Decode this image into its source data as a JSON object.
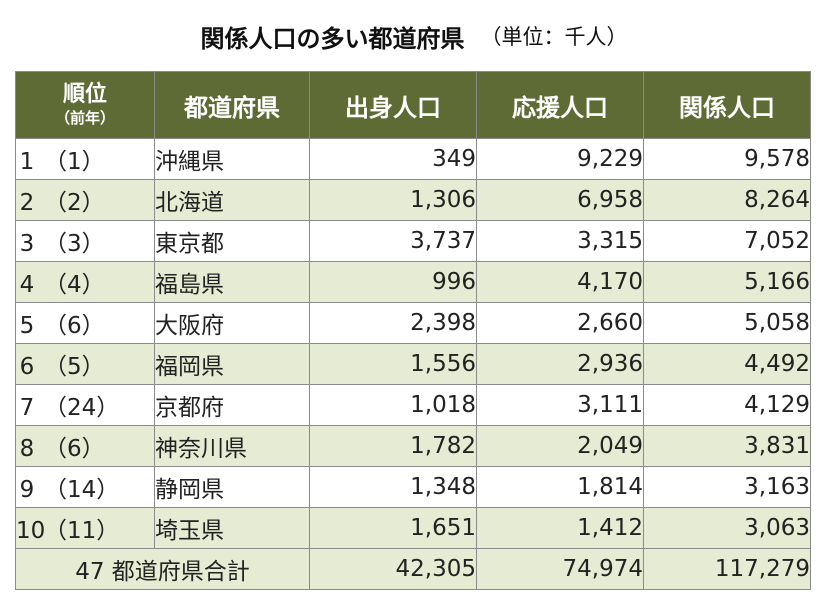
{
  "title": {
    "main": "関係人口の多い都道府県",
    "unit": "（単位：千人）"
  },
  "colors": {
    "header_bg": "#5e6b34",
    "stripe_bg": "#e6ecd3"
  },
  "headers": {
    "rank_main": "順位",
    "rank_sub": "（前年）",
    "prefecture": "都道府県",
    "origin": "出身人口",
    "support": "応援人口",
    "related": "関係人口"
  },
  "rows": [
    {
      "rank": "1",
      "prev": "（1）",
      "pref": "沖縄県",
      "origin": "349",
      "support": "9,229",
      "related": "9,578"
    },
    {
      "rank": "2",
      "prev": "（2）",
      "pref": "北海道",
      "origin": "1,306",
      "support": "6,958",
      "related": "8,264"
    },
    {
      "rank": "3",
      "prev": "（3）",
      "pref": "東京都",
      "origin": "3,737",
      "support": "3,315",
      "related": "7,052"
    },
    {
      "rank": "4",
      "prev": "（4）",
      "pref": "福島県",
      "origin": "996",
      "support": "4,170",
      "related": "5,166"
    },
    {
      "rank": "5",
      "prev": "（6）",
      "pref": "大阪府",
      "origin": "2,398",
      "support": "2,660",
      "related": "5,058"
    },
    {
      "rank": "6",
      "prev": "（5）",
      "pref": "福岡県",
      "origin": "1,556",
      "support": "2,936",
      "related": "4,492"
    },
    {
      "rank": "7",
      "prev": "（24）",
      "pref": "京都府",
      "origin": "1,018",
      "support": "3,111",
      "related": "4,129"
    },
    {
      "rank": "8",
      "prev": "（6）",
      "pref": "神奈川県",
      "origin": "1,782",
      "support": "2,049",
      "related": "3,831"
    },
    {
      "rank": "9",
      "prev": "（14）",
      "pref": "静岡県",
      "origin": "1,348",
      "support": "1,814",
      "related": "3,163"
    },
    {
      "rank": "10",
      "prev": "（11）",
      "pref": "埼玉県",
      "origin": "1,651",
      "support": "1,412",
      "related": "3,063"
    }
  ],
  "total": {
    "label": "47 都道府県合計",
    "origin": "42,305",
    "support": "74,974",
    "related": "117,279"
  }
}
